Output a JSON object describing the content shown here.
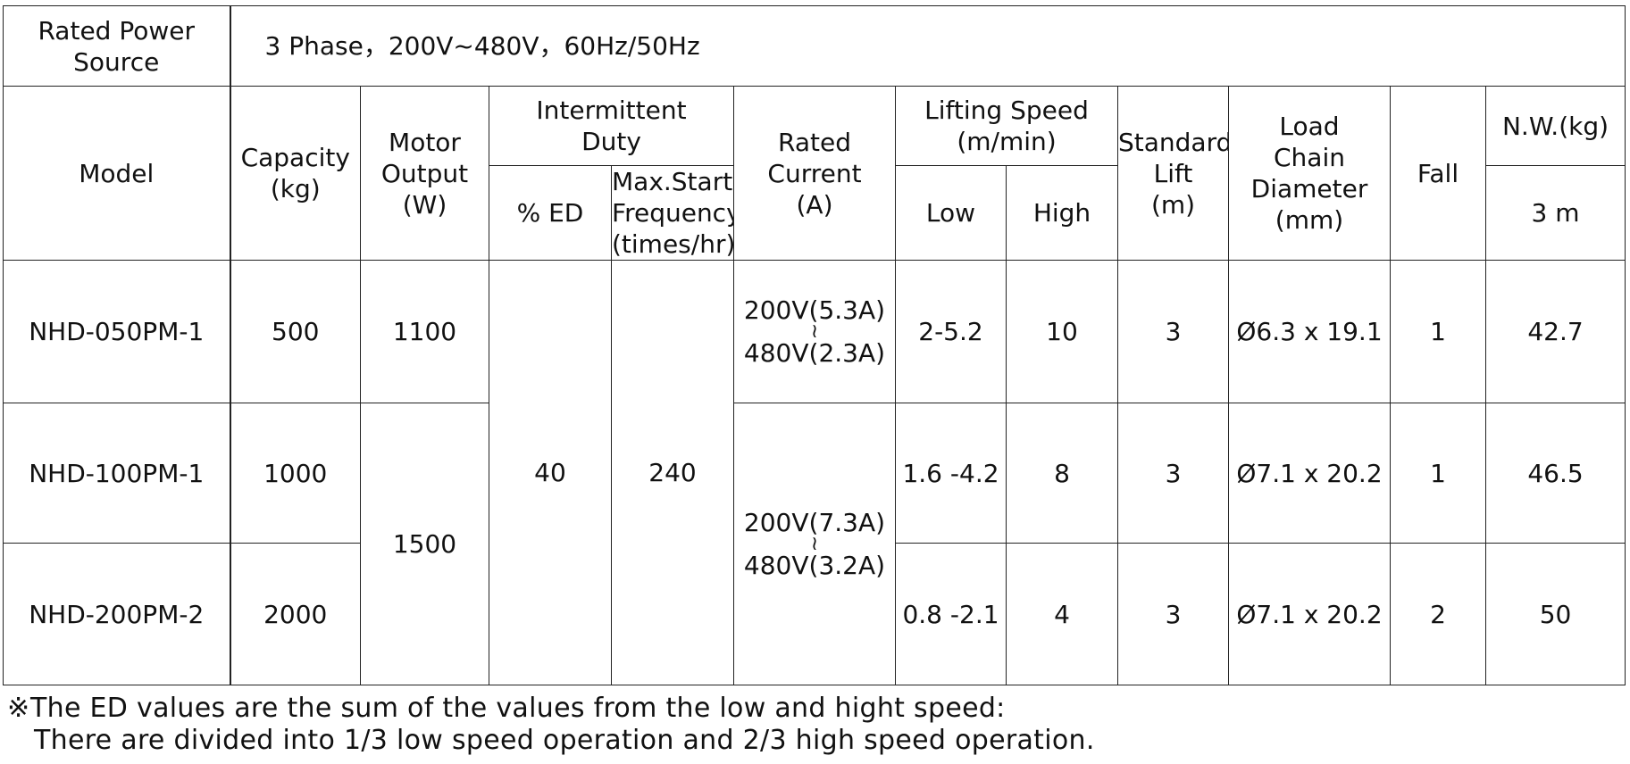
{
  "power_source": {
    "label_line1": "Rated Power",
    "label_line2": "Source",
    "value": "3 Phase，200V~480V，60Hz/50Hz"
  },
  "headers": {
    "model": "Model",
    "capacity": [
      "Capacity",
      "(kg)"
    ],
    "motor_output": [
      "Motor",
      "Output",
      "(W)"
    ],
    "intermittent_duty": [
      "Intermittent",
      "Duty"
    ],
    "ed": "% ED",
    "max_starting": [
      "Max.Starting",
      "Frequency",
      "(times/hr)"
    ],
    "rated_current": [
      "Rated",
      "Current",
      "(A)"
    ],
    "lifting_speed": [
      "Lifting Speed",
      "(m/min)"
    ],
    "low": "Low",
    "high": "High",
    "standard_lift": [
      "Standard",
      "Lift",
      "(m)"
    ],
    "load_chain": [
      "Load",
      "Chain",
      "Diameter",
      "(mm)"
    ],
    "fall": "Fall",
    "nw": "N.W.(kg)",
    "nw_sub": "3 m"
  },
  "shared": {
    "ed_value": "40",
    "max_starting_value": "240",
    "motor_1500": "1500",
    "current_b_line1": "200V(7.3A)",
    "current_b_line2": "480V(3.2A)",
    "tilde": "≀"
  },
  "rows": [
    {
      "model": "NHD-050PM-1",
      "capacity": "500",
      "motor": "1100",
      "current_line1": "200V(5.3A)",
      "current_line2": "480V(2.3A)",
      "low": "2-5.2",
      "high": "10",
      "lift": "3",
      "chain": "Ø6.3 x 19.1",
      "fall": "1",
      "nw": "42.7"
    },
    {
      "model": "NHD-100PM-1",
      "capacity": "1000",
      "low": "1.6 -4.2",
      "high": "8",
      "lift": "3",
      "chain": "Ø7.1 x 20.2",
      "fall": "1",
      "nw": "46.5"
    },
    {
      "model": "NHD-200PM-2",
      "capacity": "2000",
      "low": "0.8 -2.1",
      "high": "4",
      "lift": "3",
      "chain": "Ø7.1 x 20.2",
      "fall": "2",
      "nw": "50"
    }
  ],
  "note": {
    "mark": "※",
    "line1": "The ED values are the sum of the values from the low and hight speed:",
    "line2": "There are divided into 1/3 low speed operation and 2/3 high speed operation."
  }
}
